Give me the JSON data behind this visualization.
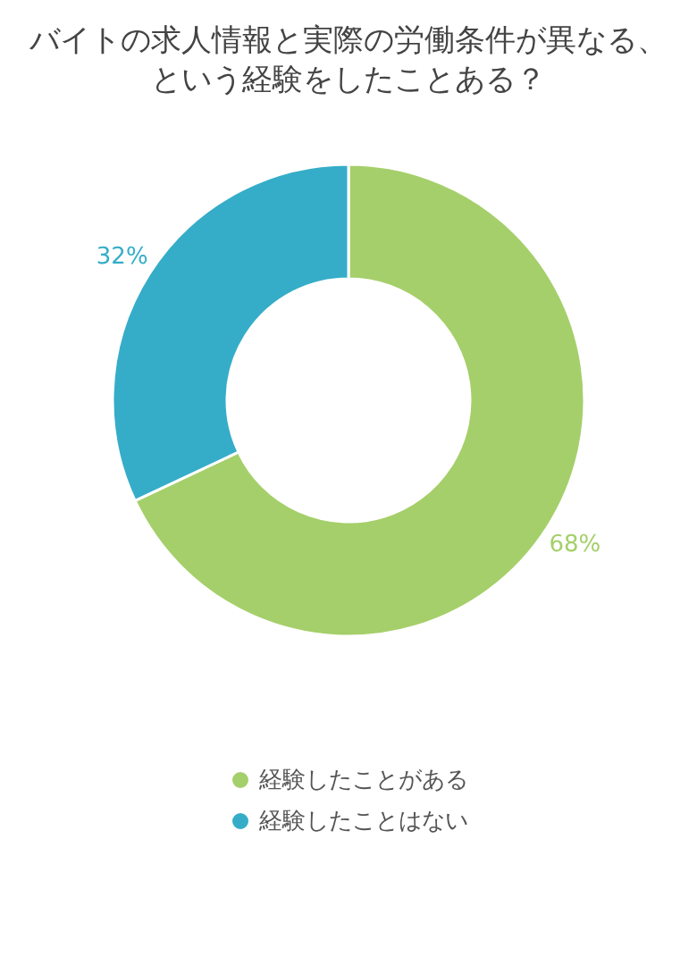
{
  "chart_data": {
    "type": "donut",
    "title": "バイトの求人情報と実際の労働条件が異なる、という経験をしたことある？",
    "categories": [
      "経験したことがある",
      "経験したことはない"
    ],
    "values": [
      68,
      32
    ],
    "colors": [
      "#a5cf6a",
      "#35adc8"
    ],
    "value_labels": [
      "68%",
      "32%"
    ],
    "legend": "bottom"
  }
}
